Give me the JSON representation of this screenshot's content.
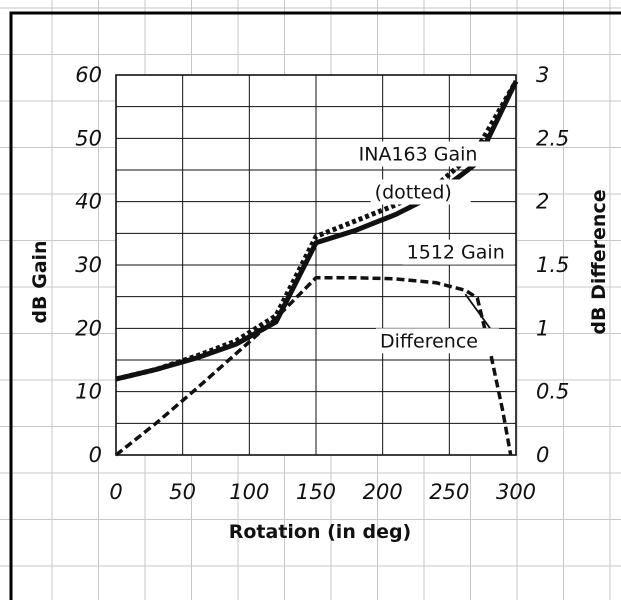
{
  "chart_data": {
    "type": "line",
    "title": "",
    "xlabel": "Rotation (in deg)",
    "ylabel_left": "dB Gain",
    "ylabel_right": "dB Difference",
    "xlim": [
      0,
      300
    ],
    "ylim_left": [
      0,
      60
    ],
    "ylim_right": [
      0,
      3
    ],
    "x_ticks": [
      "0",
      "50",
      "100",
      "150",
      "200",
      "250",
      "300"
    ],
    "y_left_ticks": [
      "0",
      "10",
      "20",
      "30",
      "40",
      "50",
      "60"
    ],
    "y_right_ticks": [
      "0",
      "0.5",
      "1",
      "1.5",
      "2",
      "2.5",
      "3"
    ],
    "grid": true,
    "series": [
      {
        "name": "1512 Gain",
        "axis": "left",
        "style": "solid",
        "color": "#111111",
        "x": [
          0,
          30,
          60,
          90,
          120,
          150,
          180,
          210,
          240,
          270,
          300
        ],
        "y": [
          12,
          13.5,
          15.3,
          17.5,
          21,
          33.5,
          35.5,
          38,
          41.2,
          46,
          59
        ]
      },
      {
        "name": "INA163 Gain",
        "axis": "left",
        "style": "dotted",
        "color": "#111111",
        "x": [
          0,
          30,
          60,
          90,
          120,
          150,
          180,
          210,
          240,
          270,
          300
        ],
        "y": [
          12,
          13.5,
          15.6,
          18,
          22,
          34.5,
          37,
          39.5,
          42.5,
          48,
          59
        ]
      },
      {
        "name": "Difference",
        "axis": "right",
        "style": "dashed",
        "color": "#111111",
        "x": [
          0,
          30,
          60,
          90,
          120,
          150,
          180,
          210,
          240,
          262,
          271,
          280,
          290,
          296
        ],
        "y": [
          0,
          0.25,
          0.52,
          0.8,
          1.08,
          1.4,
          1.4,
          1.39,
          1.36,
          1.3,
          1.24,
          0.85,
          0.35,
          0
        ]
      }
    ],
    "annotations": [
      {
        "text": "INA163 Gain",
        "x": 182,
        "y": 46.5,
        "axis": "left"
      },
      {
        "text": "(dotted)",
        "x": 194,
        "y": 40.5,
        "axis": "left"
      },
      {
        "text": "1512 Gain",
        "x": 218,
        "y": 31,
        "axis": "left"
      },
      {
        "text": "Difference",
        "x": 198,
        "y": 0.85,
        "axis": "right",
        "leader_to": [
          262,
          1.27
        ]
      }
    ]
  },
  "colors": {
    "grid_minor": "#c7c7c7",
    "grid_major": "#111111",
    "frame": "#000000",
    "ink": "#111111"
  }
}
